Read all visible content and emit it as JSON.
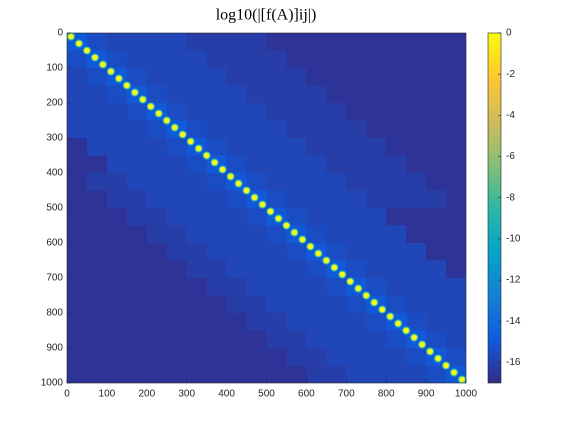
{
  "chart_data": {
    "type": "heatmap",
    "title": "log10(|[f(A)]ij|)",
    "colormap": "parula",
    "xlim": [
      0,
      1000
    ],
    "ylim": [
      0,
      1000
    ],
    "xticks": [
      0,
      100,
      200,
      300,
      400,
      500,
      600,
      700,
      800,
      900,
      1000
    ],
    "yticks": [
      0,
      100,
      200,
      300,
      400,
      500,
      600,
      700,
      800,
      900,
      1000
    ],
    "clim": [
      -17,
      0
    ],
    "cticks": [
      0,
      -2,
      -4,
      -6,
      -8,
      -10,
      -12,
      -14,
      -16
    ],
    "z": [
      [
        -15,
        -15.5,
        -15.8,
        -15.8,
        -15.8,
        -15.8,
        -16.2,
        -16.2,
        -16.2,
        -16.2,
        -16.6,
        -16.6,
        -16.6,
        -16.6,
        -16.6,
        -16.6,
        -16.6,
        -16.6,
        -16.6,
        -16.6
      ],
      [
        -15.5,
        -15,
        -15.5,
        -15.8,
        -15.8,
        -15.8,
        -15.8,
        -16.2,
        -16.2,
        -16.2,
        -16.2,
        -16.6,
        -16.6,
        -16.6,
        -16.6,
        -16.6,
        -16.6,
        -16.6,
        -16.6,
        -16.6
      ],
      [
        -15.8,
        -15.5,
        -15,
        -15.5,
        -15.8,
        -15.8,
        -15.8,
        -15.8,
        -16.2,
        -16.2,
        -16.2,
        -16.2,
        -16.6,
        -16.6,
        -16.6,
        -16.6,
        -16.6,
        -16.6,
        -16.6,
        -16.6
      ],
      [
        -15.8,
        -15.8,
        -15.5,
        -15,
        -15.5,
        -15.8,
        -15.8,
        -15.8,
        -15.8,
        -16.2,
        -16.2,
        -16.2,
        -16.2,
        -16.6,
        -16.6,
        -16.6,
        -16.6,
        -16.6,
        -16.6,
        -16.6
      ],
      [
        -15.8,
        -15.8,
        -15.8,
        -15.5,
        -15,
        -15.5,
        -15.8,
        -15.8,
        -15.8,
        -15.8,
        -16.2,
        -16.2,
        -16.2,
        -16.2,
        -16.6,
        -16.6,
        -16.6,
        -16.6,
        -16.6,
        -16.6
      ],
      [
        -15.8,
        -15.8,
        -15.8,
        -15.8,
        -15.5,
        -15,
        -15.5,
        -15.8,
        -15.8,
        -15.8,
        -15.8,
        -16.2,
        -16.2,
        -16.2,
        -16.2,
        -16.6,
        -16.6,
        -16.6,
        -16.6,
        -16.6
      ],
      [
        -16.6,
        -15.8,
        -15.8,
        -15.8,
        -15.8,
        -15.5,
        -15,
        -15.5,
        -15.8,
        -15.8,
        -15.8,
        -15.8,
        -16.2,
        -16.2,
        -16.2,
        -16.2,
        -16.6,
        -16.6,
        -16.6,
        -16.6
      ],
      [
        -16.6,
        -16.6,
        -15.8,
        -15.8,
        -15.8,
        -15.8,
        -15.5,
        -15,
        -15.5,
        -15.8,
        -15.8,
        -15.8,
        -15.8,
        -16.2,
        -16.2,
        -16.2,
        -16.2,
        -16.6,
        -16.6,
        -16.6
      ],
      [
        -16.6,
        -16.2,
        -16.2,
        -15.8,
        -15.8,
        -15.8,
        -15.8,
        -15.5,
        -15,
        -15.5,
        -15.8,
        -15.8,
        -15.8,
        -15.8,
        -16.2,
        -16.2,
        -16.2,
        -16.2,
        -16.6,
        -16.6
      ],
      [
        -16.6,
        -16.6,
        -16.2,
        -16.2,
        -15.8,
        -15.8,
        -15.8,
        -15.8,
        -15.5,
        -15,
        -15.5,
        -15.8,
        -15.8,
        -15.8,
        -15.8,
        -16.2,
        -16.2,
        -16.2,
        -16.2,
        -16.6
      ],
      [
        -16.6,
        -16.6,
        -16.6,
        -16.2,
        -16.2,
        -15.8,
        -15.8,
        -15.8,
        -15.8,
        -15.5,
        -15,
        -15.5,
        -15.8,
        -15.8,
        -15.8,
        -15.8,
        -16.6,
        -16.6,
        -16.6,
        -16.6
      ],
      [
        -16.6,
        -16.6,
        -16.6,
        -16.6,
        -16.2,
        -16.2,
        -15.8,
        -15.8,
        -15.8,
        -15.8,
        -15.5,
        -15,
        -15.5,
        -15.8,
        -15.8,
        -15.8,
        -15.8,
        -16.6,
        -16.6,
        -16.6
      ],
      [
        -16.6,
        -16.6,
        -16.6,
        -16.6,
        -16.6,
        -16.2,
        -16.2,
        -15.8,
        -15.8,
        -15.8,
        -15.8,
        -15.5,
        -15,
        -15.5,
        -15.8,
        -15.8,
        -15.8,
        -15.8,
        -16.6,
        -16.6
      ],
      [
        -16.6,
        -16.6,
        -16.6,
        -16.6,
        -16.6,
        -16.6,
        -16.2,
        -16.2,
        -15.8,
        -15.8,
        -15.8,
        -15.8,
        -15.5,
        -15,
        -15.5,
        -15.8,
        -15.8,
        -15.8,
        -15.8,
        -16.6
      ],
      [
        -16.6,
        -16.6,
        -16.6,
        -16.6,
        -16.6,
        -16.6,
        -16.6,
        -16.2,
        -16.2,
        -15.8,
        -15.8,
        -15.8,
        -15.8,
        -15.5,
        -15,
        -15.5,
        -15.8,
        -15.8,
        -15.8,
        -15.8
      ],
      [
        -16.6,
        -16.6,
        -16.6,
        -16.6,
        -16.6,
        -16.6,
        -16.6,
        -16.6,
        -16.2,
        -16.2,
        -15.8,
        -15.8,
        -15.8,
        -15.8,
        -15.5,
        -15,
        -15.5,
        -15.8,
        -15.8,
        -15.8
      ],
      [
        -16.6,
        -16.6,
        -16.6,
        -16.6,
        -16.6,
        -16.6,
        -16.6,
        -16.6,
        -16.6,
        -16.2,
        -16.2,
        -15.8,
        -15.8,
        -15.8,
        -15.8,
        -15.5,
        -15,
        -15.5,
        -15.8,
        -15.8
      ],
      [
        -16.6,
        -16.6,
        -16.6,
        -16.6,
        -16.6,
        -16.6,
        -16.6,
        -16.6,
        -16.6,
        -16.6,
        -16.2,
        -16.2,
        -15.8,
        -15.8,
        -15.8,
        -15.8,
        -15.5,
        -15,
        -15.5,
        -15.8
      ],
      [
        -16.6,
        -16.6,
        -16.6,
        -16.6,
        -16.6,
        -16.6,
        -16.6,
        -16.6,
        -16.6,
        -16.6,
        -16.6,
        -16.2,
        -16.2,
        -15.8,
        -15.8,
        -15.8,
        -15.8,
        -15.5,
        -15,
        -15.5
      ],
      [
        -16.6,
        -16.6,
        -16.6,
        -16.6,
        -16.6,
        -16.6,
        -16.6,
        -16.6,
        -16.6,
        -16.6,
        -16.6,
        -16.6,
        -16.2,
        -16.2,
        -15.8,
        -15.8,
        -15.8,
        -15.8,
        -15.5,
        -15
      ]
    ],
    "diagonal_x": [
      10,
      30,
      50,
      70,
      90,
      110,
      130,
      150,
      170,
      190,
      210,
      230,
      250,
      270,
      290,
      310,
      330,
      350,
      370,
      390,
      410,
      430,
      450,
      470,
      490,
      510,
      530,
      550,
      570,
      590,
      610,
      630,
      650,
      670,
      690,
      710,
      730,
      750,
      770,
      790,
      810,
      830,
      850,
      870,
      890,
      910,
      930,
      950,
      970,
      990
    ],
    "diagonal_values": [
      0,
      0,
      0,
      0,
      0,
      0,
      0,
      0,
      0,
      0,
      0,
      0,
      0,
      0,
      0,
      0,
      0,
      0,
      0,
      0,
      0,
      0,
      0,
      0,
      0,
      0,
      0,
      0,
      0,
      0,
      0,
      0,
      0,
      0,
      0,
      0,
      0,
      0,
      0,
      0,
      0,
      0,
      0,
      0,
      0,
      0,
      0,
      0,
      0,
      0
    ]
  }
}
